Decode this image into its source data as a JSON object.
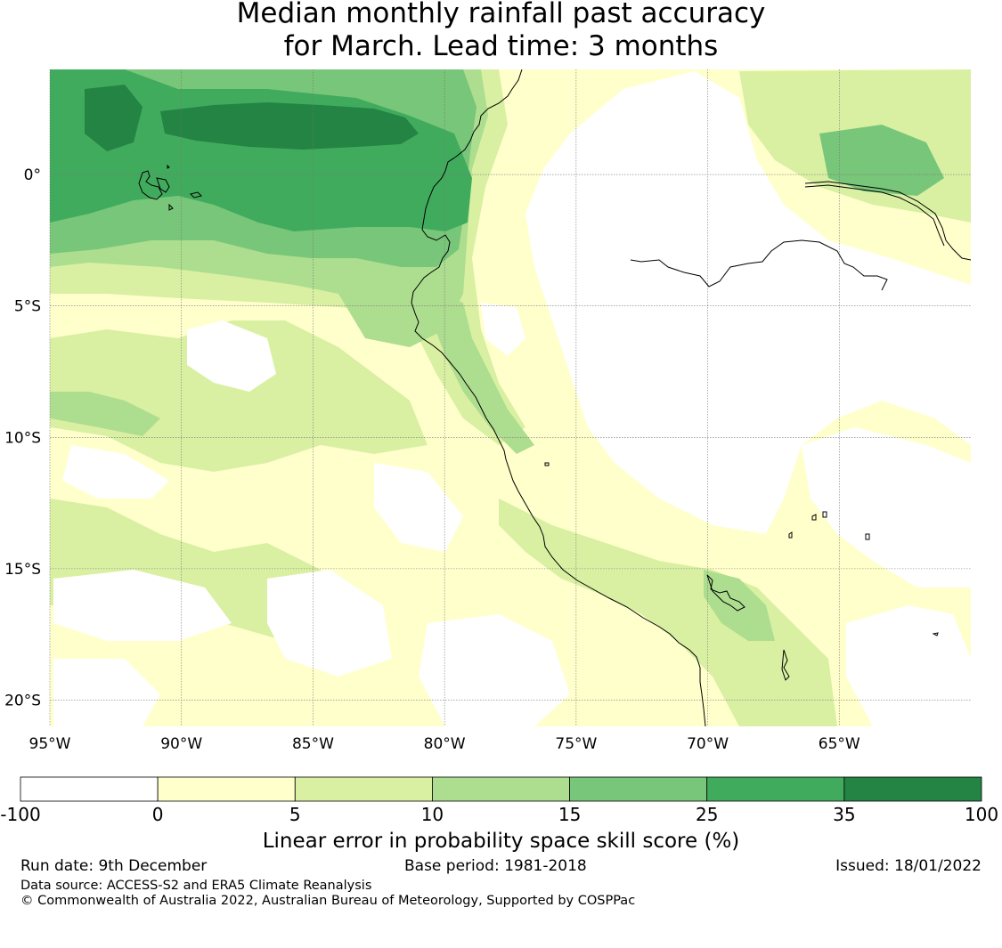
{
  "title": {
    "line1": "Median monthly rainfall past accuracy",
    "line2": "for March. Lead time: 3 months"
  },
  "map": {
    "lon_range": [
      -95,
      -60
    ],
    "lat_range": [
      -21,
      4
    ],
    "lat_ticks": [
      {
        "value": 0,
        "label": "0°"
      },
      {
        "value": -5,
        "label": "5°S"
      },
      {
        "value": -10,
        "label": "10°S"
      },
      {
        "value": -15,
        "label": "15°S"
      },
      {
        "value": -20,
        "label": "20°S"
      }
    ],
    "lon_ticks": [
      {
        "value": -95,
        "label": "95°W"
      },
      {
        "value": -90,
        "label": "90°W"
      },
      {
        "value": -85,
        "label": "85°W"
      },
      {
        "value": -80,
        "label": "80°W"
      },
      {
        "value": -75,
        "label": "75°W"
      },
      {
        "value": -70,
        "label": "70°W"
      },
      {
        "value": -65,
        "label": "65°W"
      }
    ],
    "gridlines": true
  },
  "colorbar": {
    "title": "Linear error in probability space skill score (%)",
    "bins": [
      {
        "min": "-100",
        "max": "0",
        "color": "#ffffff"
      },
      {
        "min": "0",
        "max": "5",
        "color": "#ffffcc"
      },
      {
        "min": "5",
        "max": "10",
        "color": "#d9f0a3"
      },
      {
        "min": "10",
        "max": "15",
        "color": "#addd8e"
      },
      {
        "min": "15",
        "max": "25",
        "color": "#78c679"
      },
      {
        "min": "25",
        "max": "35",
        "color": "#41ab5d"
      },
      {
        "min": "35",
        "max": "100",
        "color": "#238443"
      }
    ]
  },
  "footer": {
    "run_date": "Run date: 9th December",
    "base_period": "Base period: 1981-2018",
    "issued": "Issued: 18/01/2022",
    "data_source": "Data source: ACCESS-S2 and ERA5 Climate Reanalysis",
    "copyright": "© Commonwealth of Australia 2022, Australian Bureau of Meteorology, Supported by COSPPac"
  }
}
